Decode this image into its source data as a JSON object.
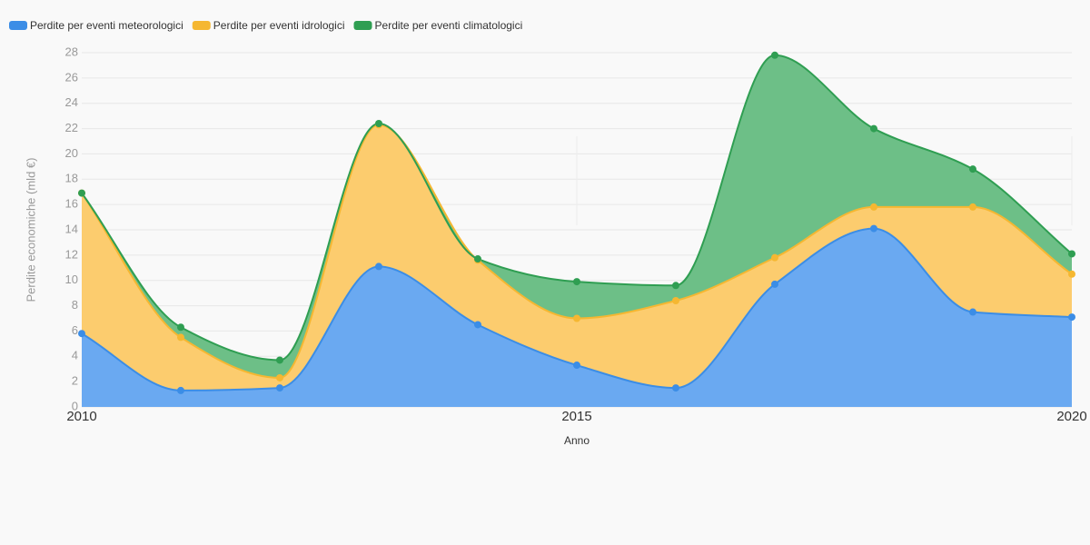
{
  "chart_data": {
    "type": "area",
    "x_label": "Anno",
    "y_label": "Perdite economiche (mld €)",
    "x": [
      2010,
      2011,
      2012,
      2013,
      2014,
      2015,
      2016,
      2017,
      2018,
      2019,
      2020
    ],
    "xlim": [
      2010,
      2020
    ],
    "xticks": [
      2010,
      2015,
      2020
    ],
    "ylim": [
      0,
      28
    ],
    "yticks": [
      0,
      2,
      4,
      6,
      8,
      10,
      12,
      14,
      16,
      18,
      20,
      22,
      24,
      26,
      28
    ],
    "grid": true,
    "stacked": true,
    "legend": "top-left",
    "series": [
      {
        "name": "Perdite per eventi meteorologici",
        "color": "#3b8de6",
        "fill": "#6aa9f1",
        "values": [
          5.8,
          1.3,
          1.5,
          11.1,
          6.5,
          3.3,
          1.5,
          9.7,
          14.1,
          7.5,
          7.1
        ]
      },
      {
        "name": "Perdite per eventi idrologici",
        "color": "#f5b731",
        "fill": "#fccc6e",
        "values": [
          11.1,
          4.2,
          0.8,
          11.2,
          5.1,
          3.7,
          6.9,
          2.1,
          1.7,
          8.3,
          3.4
        ]
      },
      {
        "name": "Perdite per eventi climatologici",
        "color": "#2f9e52",
        "fill": "#6dbf87",
        "values": [
          0,
          0.8,
          1.4,
          0.1,
          0.1,
          2.9,
          1.2,
          16.0,
          6.2,
          3.0,
          1.6
        ]
      }
    ]
  }
}
